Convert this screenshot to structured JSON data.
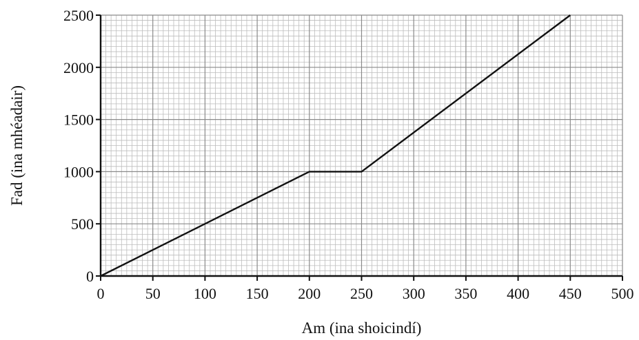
{
  "chart_data": {
    "type": "line",
    "xlabel": "Am (ina shoicindí)",
    "ylabel": "Fad (ina mhéadair)",
    "xlim": [
      0,
      500
    ],
    "ylim": [
      0,
      2500
    ],
    "x_ticks": [
      0,
      50,
      100,
      150,
      200,
      250,
      300,
      350,
      400,
      450,
      500
    ],
    "y_ticks": [
      0,
      500,
      1000,
      1500,
      2000,
      2500
    ],
    "x_tick_labels": [
      "0",
      "50",
      "100",
      "150",
      "200",
      "250",
      "300",
      "350",
      "400",
      "450",
      "500"
    ],
    "y_tick_labels": [
      "0",
      "500",
      "1000",
      "1500",
      "2000",
      "2500"
    ],
    "grid": true,
    "series": [
      {
        "x": [
          0,
          200,
          250,
          450
        ],
        "y": [
          0,
          1000,
          1000,
          2500
        ]
      }
    ],
    "colors": {
      "line": "#111111",
      "axes": "#111111",
      "grid_major": "#8a8a8a",
      "grid_minor": "#bdbdbd"
    }
  }
}
